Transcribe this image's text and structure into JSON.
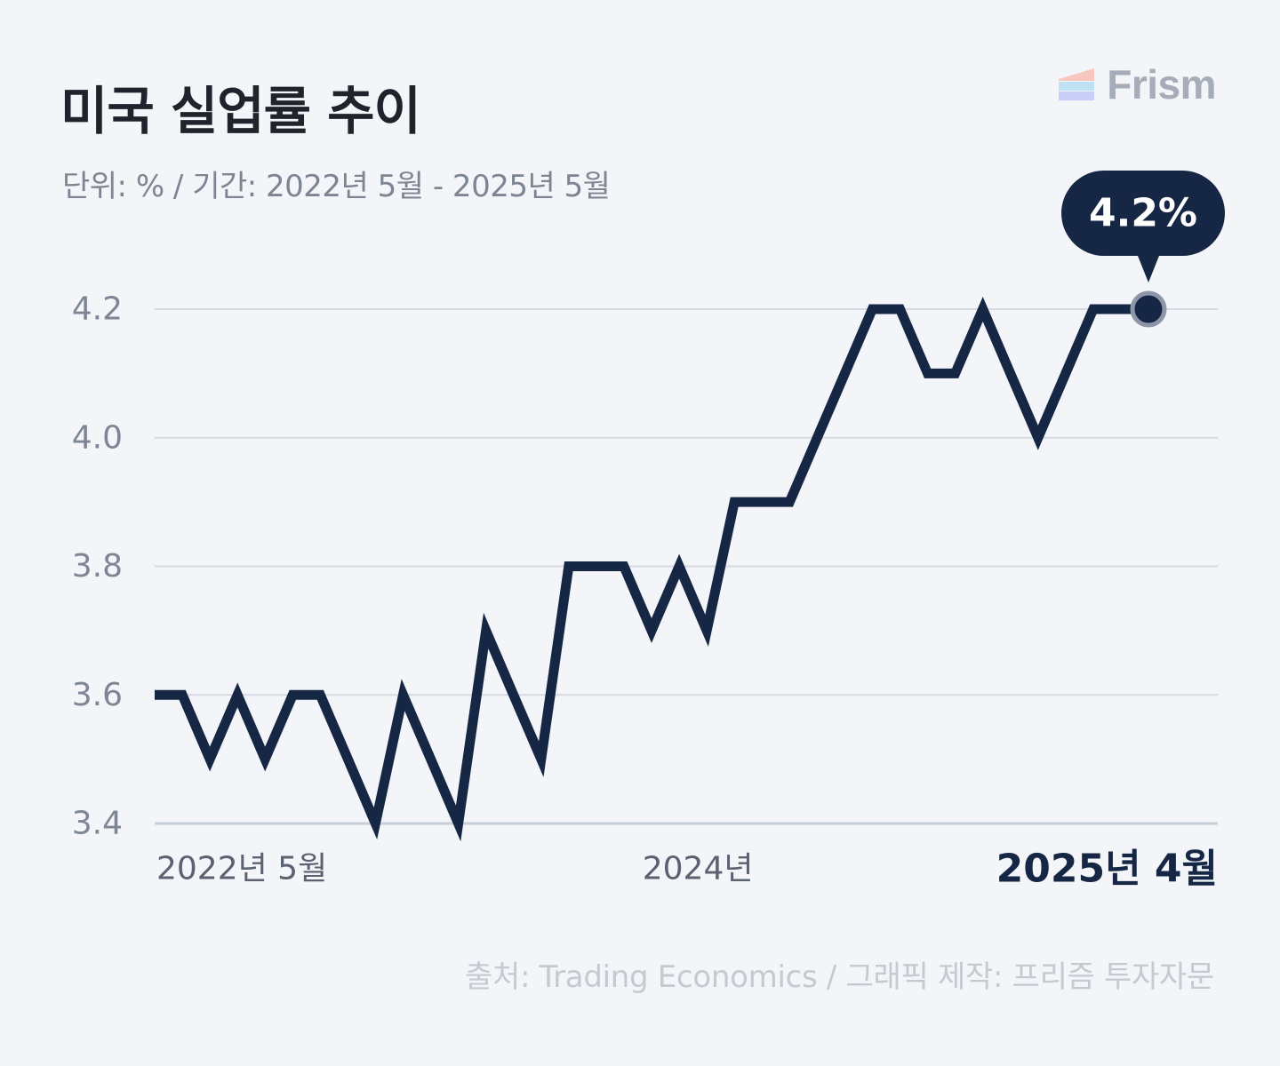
{
  "title": "미국 실업률 추이",
  "subtitle": "단위: % / 기간: 2022년 5월 - 2025년 5월",
  "brand": {
    "name": "Frism",
    "logo_icon": "frism-logo-icon"
  },
  "source": "출처: Trading Economics / 그래픽 제작: 프리즘 투자자문",
  "colors": {
    "line": "#152744",
    "grid": "#d5dae2",
    "axis_text": "#7e8594",
    "background": "#f3f5f8"
  },
  "chart_data": {
    "type": "line",
    "title": "미국 실업률 추이",
    "ylim": [
      3.4,
      4.2
    ],
    "yticks": [
      "4.2",
      "4.0",
      "3.8",
      "3.6",
      "3.4"
    ],
    "xtick_labels": [
      {
        "label": "2022년 5월",
        "index": 0
      },
      {
        "label": "2024년",
        "index": 20
      },
      {
        "label": "2025년 4월",
        "index": 35,
        "emphasis": true
      }
    ],
    "grid": true,
    "values": [
      3.6,
      3.6,
      3.5,
      3.6,
      3.5,
      3.6,
      3.6,
      3.5,
      3.4,
      3.6,
      3.5,
      3.4,
      3.7,
      3.6,
      3.5,
      3.8,
      3.8,
      3.8,
      3.7,
      3.8,
      3.7,
      3.9,
      3.9,
      3.9,
      4.0,
      4.1,
      4.2,
      4.2,
      4.1,
      4.1,
      4.2,
      4.1,
      4.0,
      4.1,
      4.2,
      4.2,
      4.2
    ],
    "highlight": {
      "index": 36,
      "label": "4.2%"
    }
  }
}
